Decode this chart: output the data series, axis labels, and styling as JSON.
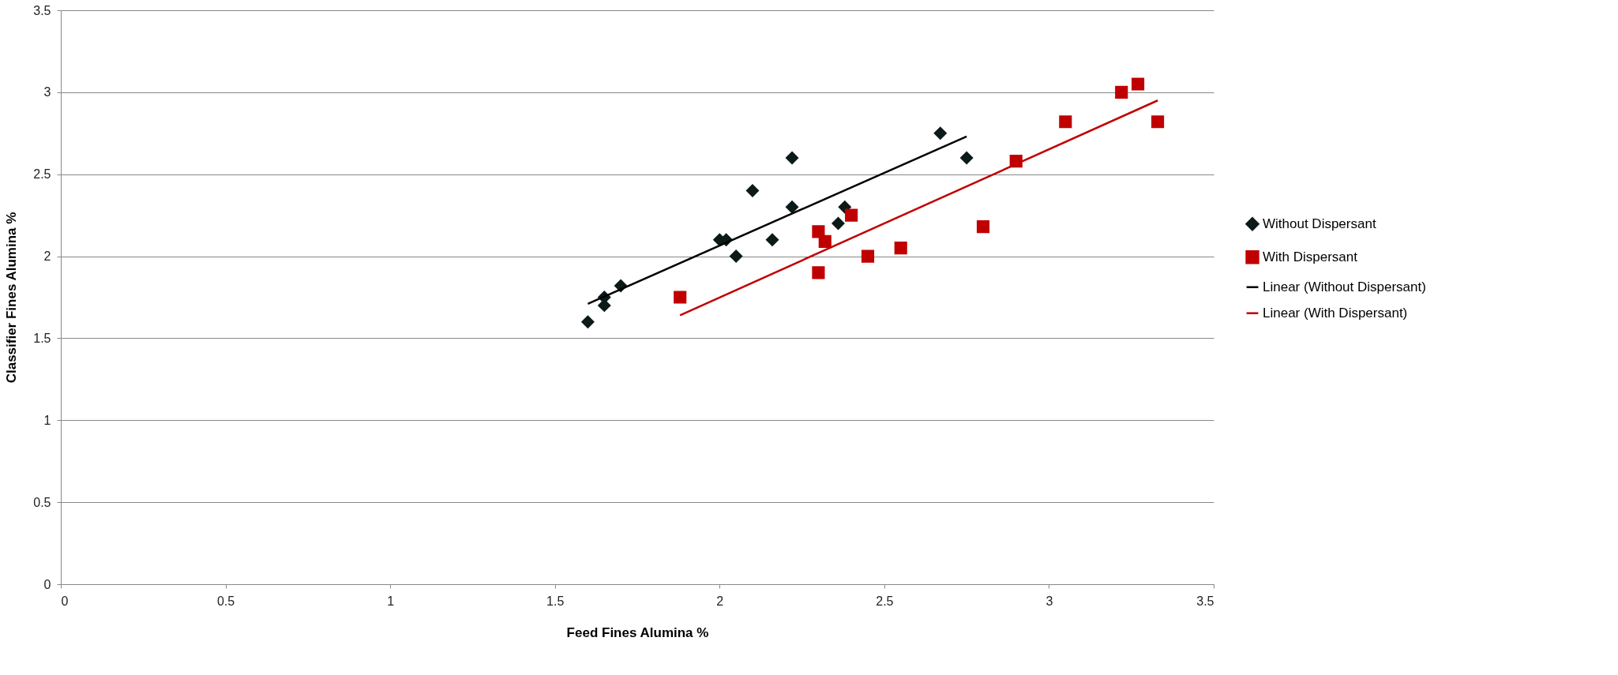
{
  "chart_data": {
    "type": "scatter",
    "xlabel": "Feed Fines Alumina %",
    "ylabel": "Classifier Fines Alumina %",
    "xlim": [
      0,
      3.5
    ],
    "ylim": [
      0,
      3.5
    ],
    "xticks": [
      0,
      0.5,
      1,
      1.5,
      2,
      2.5,
      3,
      3.5
    ],
    "yticks": [
      0,
      0.5,
      1,
      1.5,
      2,
      2.5,
      3,
      3.5
    ],
    "grid": "y",
    "legend": "right",
    "series": [
      {
        "name": "Without Dispersant",
        "type": "scatter",
        "marker": "diamond",
        "color": "#0d1a1a",
        "x": [
          1.6,
          1.65,
          1.65,
          1.7,
          2.0,
          2.02,
          2.05,
          2.1,
          2.16,
          2.22,
          2.22,
          2.36,
          2.38,
          2.67,
          2.75
        ],
        "values": [
          1.6,
          1.75,
          1.7,
          1.82,
          2.1,
          2.1,
          2.0,
          2.4,
          2.1,
          2.6,
          2.3,
          2.2,
          2.3,
          2.75,
          2.6
        ]
      },
      {
        "name": "With Dispersant",
        "type": "scatter",
        "marker": "square",
        "color": "#c00000",
        "x": [
          1.88,
          2.3,
          2.32,
          2.3,
          2.4,
          2.45,
          2.55,
          2.8,
          2.9,
          3.05,
          3.22,
          3.27,
          3.33
        ],
        "values": [
          1.75,
          2.15,
          2.09,
          1.9,
          2.25,
          2.0,
          2.05,
          2.18,
          2.58,
          2.82,
          3.0,
          3.05,
          2.82
        ]
      },
      {
        "name": "Linear (Without Dispersant)",
        "type": "line",
        "marker": "none",
        "line_style": "solid",
        "color": "#000000",
        "x": [
          1.6,
          2.75
        ],
        "values": [
          1.71,
          2.73
        ]
      },
      {
        "name": "Linear (With Dispersant)",
        "type": "line",
        "marker": "none",
        "line_style": "solid",
        "color": "#c00000",
        "x": [
          1.88,
          3.33
        ],
        "values": [
          1.64,
          2.95
        ]
      }
    ]
  }
}
